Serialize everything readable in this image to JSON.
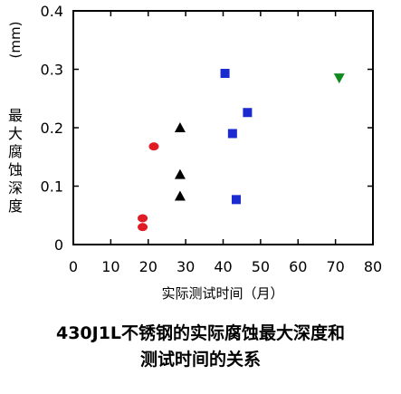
{
  "chart_data": {
    "type": "scatter",
    "xlabel": "实际测试时间（月）",
    "ylabel": "最大腐蚀深度",
    "yunit": "(mm)",
    "xlim": [
      0,
      80
    ],
    "ylim": [
      0,
      0.4
    ],
    "xticks": [
      "0",
      "10",
      "20",
      "30",
      "40",
      "50",
      "60",
      "70",
      "80"
    ],
    "yticks": [
      "0",
      "0.1",
      "0.2",
      "0.3",
      "0.4"
    ],
    "grid": false,
    "series": [
      {
        "marker": "circle",
        "color": "#e01b24",
        "points": [
          [
            21.5,
            0.168
          ],
          [
            18.5,
            0.045
          ],
          [
            18.5,
            0.03
          ]
        ]
      },
      {
        "marker": "triangle-up",
        "color": "#000000",
        "points": [
          [
            28.5,
            0.2
          ],
          [
            28.5,
            0.12
          ],
          [
            28.5,
            0.083
          ]
        ]
      },
      {
        "marker": "square",
        "color": "#1c2bd0",
        "points": [
          [
            40.5,
            0.293
          ],
          [
            46.5,
            0.226
          ],
          [
            42.5,
            0.19
          ],
          [
            43.5,
            0.077
          ]
        ]
      },
      {
        "marker": "triangle-down",
        "color": "#0e8a1e",
        "points": [
          [
            71,
            0.285
          ]
        ]
      }
    ]
  },
  "caption_line1": "430J1L不锈钢的实际腐蚀最大深度和",
  "caption_line2": "测试时间的关系"
}
